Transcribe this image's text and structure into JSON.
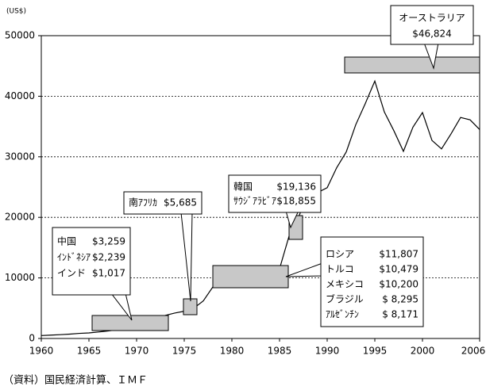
{
  "chart_data": {
    "type": "line",
    "unit_label": "(US$)",
    "source": "（資料）国民経済計算、ＩＭＦ",
    "x": [
      1960,
      1961,
      1962,
      1963,
      1964,
      1965,
      1966,
      1967,
      1968,
      1969,
      1970,
      1971,
      1972,
      1973,
      1974,
      1975,
      1976,
      1977,
      1978,
      1979,
      1980,
      1981,
      1982,
      1983,
      1984,
      1985,
      1986,
      1987,
      1988,
      1989,
      1990,
      1991,
      1992,
      1993,
      1994,
      1995,
      1996,
      1997,
      1998,
      1999,
      2000,
      2001,
      2002,
      2003,
      2004,
      2005,
      2006
    ],
    "values": [
      480,
      560,
      630,
      720,
      840,
      920,
      1070,
      1240,
      1450,
      1670,
      1970,
      2230,
      2900,
      3800,
      4200,
      4500,
      5000,
      6200,
      8500,
      8800,
      9300,
      10200,
      9600,
      10400,
      10900,
      11500,
      16900,
      20000,
      24300,
      24100,
      24900,
      28200,
      30800,
      35300,
      38800,
      42500,
      37400,
      34300,
      30900,
      34900,
      37300,
      32700,
      31300,
      33800,
      36500,
      36100,
      34500
    ],
    "color": "#000000",
    "xlim": [
      1960,
      2006
    ],
    "xticks": [
      1960,
      1965,
      1970,
      1975,
      1980,
      1985,
      1990,
      1995,
      2000,
      2006
    ],
    "ylim": [
      0,
      50000
    ],
    "yticks": [
      0,
      10000,
      20000,
      30000,
      40000,
      50000
    ],
    "grid": true,
    "annotations": [
      {
        "items": [
          {
            "name": "中国",
            "value": "$3,259"
          },
          {
            "name": "ｲﾝﾄﾞﾈｼｱ",
            "value": "$2,239"
          },
          {
            "name": "インド",
            "value": "$1,017"
          }
        ]
      },
      {
        "items": [
          {
            "name": "南ｱﾌﾘｶ",
            "value": "$5,685"
          }
        ]
      },
      {
        "items": [
          {
            "name": "韓国",
            "value": "$19,136"
          },
          {
            "name": "ｻｳｼﾞｱﾗﾋﾞｱ",
            "value": "$18,855"
          }
        ]
      },
      {
        "items": [
          {
            "name": "ロシア",
            "value": "$11,807"
          },
          {
            "name": "トルコ",
            "value": "$10,479"
          },
          {
            "name": "メキシコ",
            "value": "$10,200"
          },
          {
            "name": "ブラジル",
            "value": "$ 8,295"
          },
          {
            "name": "ｱﾙｾﾞﾝﾁﾝ",
            "value": "$ 8,171"
          }
        ]
      },
      {
        "items": [
          {
            "name": "オーストラリア",
            "value": "$46,824"
          }
        ]
      }
    ]
  }
}
